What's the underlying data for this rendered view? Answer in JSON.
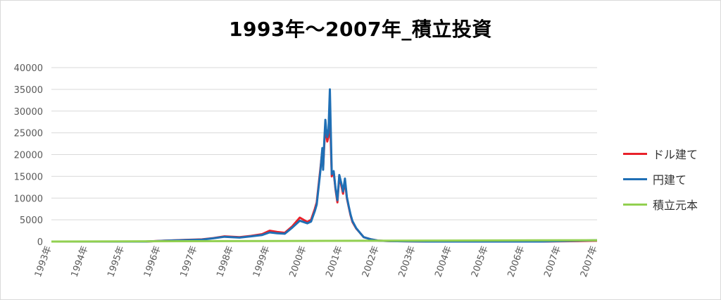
{
  "chart_data": {
    "type": "line",
    "title": "1993年～2007年_積立投資",
    "xlabel": "",
    "ylabel": "",
    "ylim": [
      0,
      40000
    ],
    "yticks": [
      0,
      5000,
      10000,
      15000,
      20000,
      25000,
      30000,
      35000,
      40000
    ],
    "xticks": [
      "1993年",
      "1994年",
      "1995年",
      "1996年",
      "1997年",
      "1998年",
      "1999年",
      "2000年",
      "2001年",
      "2002年",
      "2003年",
      "2004年",
      "2005年",
      "2006年",
      "2007年",
      "2007年"
    ],
    "grid": "horizontal",
    "legend_position": "right",
    "colors": {
      "dollar": "#e8212a",
      "yen": "#1f6fb5",
      "principal": "#92d050"
    },
    "series": [
      {
        "name": "ドル建て",
        "x": [
          1993.0,
          1995.5,
          1996.0,
          1996.5,
          1997.0,
          1997.3,
          1997.6,
          1998.0,
          1998.3,
          1998.6,
          1998.8,
          1999.0,
          1999.2,
          1999.4,
          1999.6,
          1999.8,
          1999.9,
          2000.0,
          2000.05,
          2000.1,
          2000.15,
          2000.2,
          2000.22,
          2000.25,
          2000.28,
          2000.3,
          2000.33,
          2000.36,
          2000.4,
          2000.45,
          2000.5,
          2000.55,
          2000.6,
          2000.65,
          2000.7,
          2000.75,
          2000.8,
          2000.85,
          2000.9,
          2000.95,
          2001.0,
          2001.1,
          2001.2,
          2001.3,
          2001.5,
          2001.7,
          2002.0,
          2003.0,
          2004.0,
          2005.0,
          2006.0,
          2007.0,
          2007.5
        ],
        "y": [
          0,
          0,
          200,
          350,
          500,
          800,
          1200,
          1000,
          1300,
          1700,
          2500,
          2200,
          2000,
          3500,
          5500,
          4500,
          5000,
          7500,
          9000,
          13000,
          17000,
          21000,
          17000,
          22000,
          27000,
          25000,
          23000,
          24000,
          30000,
          15000,
          16000,
          12000,
          9000,
          15000,
          13000,
          11000,
          14000,
          10000,
          8000,
          6000,
          4500,
          3000,
          2000,
          1000,
          500,
          200,
          100,
          0,
          0,
          0,
          0,
          100,
          200
        ]
      },
      {
        "name": "円建て",
        "x": [
          1993.0,
          1995.5,
          1996.0,
          1996.5,
          1997.0,
          1997.3,
          1997.6,
          1998.0,
          1998.3,
          1998.6,
          1998.8,
          1999.0,
          1999.2,
          1999.4,
          1999.6,
          1999.8,
          1999.9,
          2000.0,
          2000.05,
          2000.1,
          2000.15,
          2000.2,
          2000.22,
          2000.25,
          2000.28,
          2000.3,
          2000.33,
          2000.36,
          2000.4,
          2000.45,
          2000.5,
          2000.55,
          2000.6,
          2000.65,
          2000.7,
          2000.75,
          2000.8,
          2000.85,
          2000.9,
          2000.95,
          2001.0,
          2001.1,
          2001.2,
          2001.3,
          2001.5,
          2001.7,
          2002.0,
          2003.0,
          2004.0,
          2005.0,
          2006.0,
          2007.0,
          2007.5
        ],
        "y": [
          0,
          0,
          180,
          320,
          450,
          750,
          1100,
          900,
          1200,
          1500,
          2100,
          1900,
          1800,
          3200,
          4800,
          4200,
          4600,
          7000,
          8500,
          12500,
          16500,
          21500,
          16500,
          23000,
          28000,
          26000,
          24000,
          25000,
          35000,
          15500,
          16200,
          12300,
          9500,
          15300,
          13500,
          11500,
          14500,
          10300,
          8200,
          6200,
          4700,
          3100,
          2000,
          1000,
          500,
          200,
          100,
          0,
          0,
          0,
          0,
          200,
          300
        ]
      },
      {
        "name": "積立元本",
        "x": [
          1993.0,
          2007.5
        ],
        "y": [
          0,
          300
        ]
      }
    ]
  }
}
